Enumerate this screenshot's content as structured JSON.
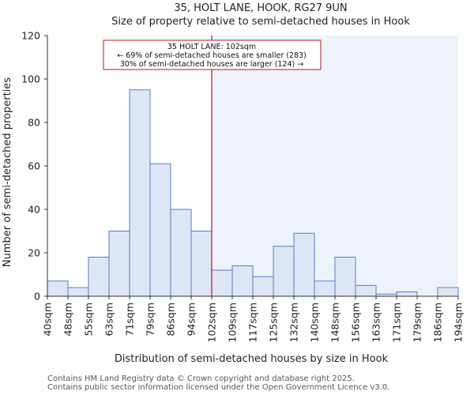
{
  "chart_data": {
    "type": "bar",
    "title_line1": "35, HOLT LANE, HOOK, RG27 9UN",
    "title_line2": "Size of property relative to semi-detached houses in Hook",
    "xlabel": "Distribution of semi-detached houses by size in Hook",
    "ylabel": "Number of semi-detached properties",
    "ylim": [
      0,
      120
    ],
    "yticks": [
      0,
      20,
      40,
      60,
      80,
      100,
      120
    ],
    "tick_labels": [
      "40sqm",
      "48sqm",
      "55sqm",
      "63sqm",
      "71sqm",
      "79sqm",
      "86sqm",
      "94sqm",
      "102sqm",
      "109sqm",
      "117sqm",
      "125sqm",
      "132sqm",
      "140sqm",
      "148sqm",
      "156sqm",
      "163sqm",
      "171sqm",
      "179sqm",
      "186sqm",
      "194sqm"
    ],
    "values": [
      7,
      4,
      18,
      30,
      95,
      61,
      40,
      30,
      12,
      14,
      9,
      23,
      29,
      7,
      18,
      5,
      1,
      2,
      0,
      4
    ],
    "property_bin_index": 8,
    "bar_color": "#dce6f5",
    "bar_edge_color": "#5b7fc4",
    "highlight_bg_color": "#eef2fb",
    "marker_color": "#c0141e",
    "annotation": {
      "line1": "35 HOLT LANE: 102sqm",
      "line2": "← 69% of semi-detached houses are smaller (283)",
      "line3": "30% of semi-detached houses are larger (124) →"
    }
  },
  "footer": {
    "line1": "Contains HM Land Registry data © Crown copyright and database right 2025.",
    "line2": "Contains public sector information licensed under the Open Government Licence v3.0."
  }
}
